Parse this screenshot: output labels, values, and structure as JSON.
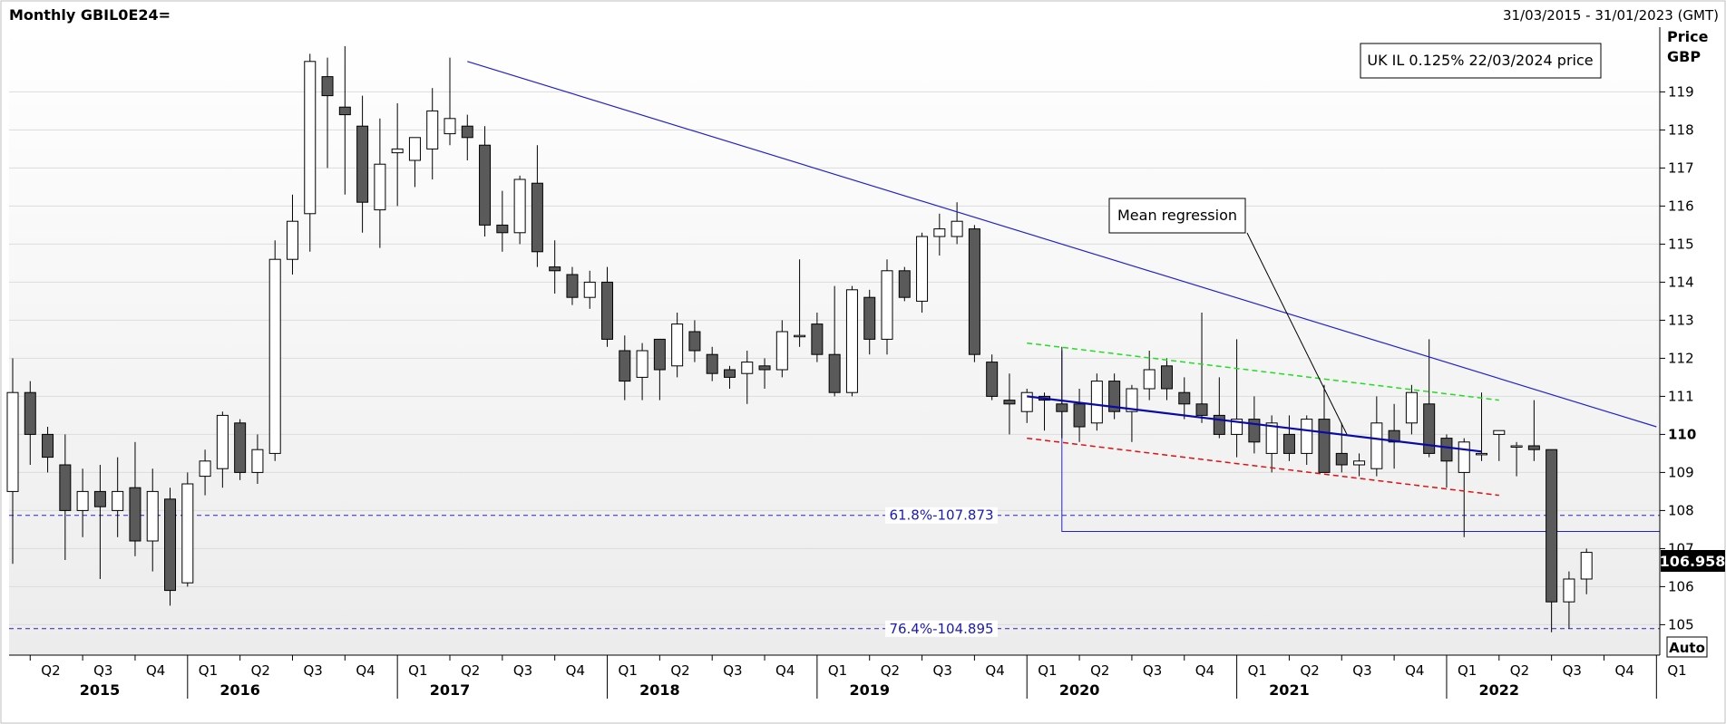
{
  "title": "Monthly GBIL0E24=",
  "date_range": "31/03/2015 - 31/01/2023 (GMT)",
  "y_axis": {
    "label_line1": "Price",
    "label_line2": "GBP",
    "auto_label": "Auto"
  },
  "legend": {
    "text": "UK IL 0.125% 22/03/2024 price"
  },
  "annotation": {
    "text": "Mean regression"
  },
  "colors": {
    "up_fill": "#ffffff",
    "down_fill": "#5a5a5a",
    "trend": "#2222cc",
    "regression": "#0a0aa8",
    "upper_channel": "#22dd22",
    "lower_channel": "#dd1111",
    "fib": "#2222cc",
    "last_price_box": "#000000"
  },
  "chart_data": {
    "type": "candlestick",
    "title": "Monthly GBIL0E24=",
    "ylim": [
      104.2,
      120.7
    ],
    "yticks": [
      105,
      106,
      107,
      108,
      109,
      110,
      111,
      112,
      113,
      114,
      115,
      116,
      117,
      118,
      119
    ],
    "last_price": "106.958",
    "quarters": [
      "Q2",
      "Q3",
      "Q4",
      "Q1",
      "Q2",
      "Q3",
      "Q4",
      "Q1",
      "Q2",
      "Q3",
      "Q4",
      "Q1",
      "Q2",
      "Q3",
      "Q4",
      "Q1",
      "Q2",
      "Q3",
      "Q4",
      "Q1",
      "Q2",
      "Q3",
      "Q4",
      "Q1",
      "Q2",
      "Q3",
      "Q4",
      "Q1",
      "Q2",
      "Q3",
      "Q4",
      "Q1"
    ],
    "years": [
      "2015",
      "2016",
      "2017",
      "2018",
      "2019",
      "2020",
      "2021",
      "2022"
    ],
    "fib_levels": [
      {
        "label": "61.8%-107.873",
        "value": 107.873
      },
      {
        "label": "76.4%-104.895",
        "value": 104.895
      }
    ],
    "trend_lines": [
      {
        "name": "",
        "from": [
          "2017-05",
          119.8
        ],
        "to": [
          "2023-01",
          110.2
        ]
      }
    ],
    "regression": {
      "from": [
        "2020-01",
        111.0
      ],
      "to": [
        "2022-03",
        109.55
      ]
    },
    "channel_upper": {
      "from": [
        "2020-01",
        112.4
      ],
      "to": [
        "2022-04",
        110.9
      ]
    },
    "channel_lower": {
      "from": [
        "2020-01",
        109.9
      ],
      "to": [
        "2022-04",
        108.4
      ]
    },
    "support_line": {
      "from": [
        "2020-03",
        107.45
      ],
      "to": [
        "2023-01",
        107.45
      ],
      "drop_from": 112.2
    },
    "candles": [
      {
        "d": "2015-03",
        "o": 108.5,
        "h": 112.0,
        "l": 106.6,
        "c": 111.1
      },
      {
        "d": "2015-04",
        "o": 111.1,
        "h": 111.4,
        "l": 109.2,
        "c": 110.0
      },
      {
        "d": "2015-05",
        "o": 110.0,
        "h": 110.2,
        "l": 109.0,
        "c": 109.4
      },
      {
        "d": "2015-06",
        "o": 109.2,
        "h": 110.0,
        "l": 106.7,
        "c": 108.0
      },
      {
        "d": "2015-07",
        "o": 108.0,
        "h": 109.1,
        "l": 107.3,
        "c": 108.5
      },
      {
        "d": "2015-08",
        "o": 108.5,
        "h": 109.2,
        "l": 106.2,
        "c": 108.1
      },
      {
        "d": "2015-09",
        "o": 108.0,
        "h": 109.4,
        "l": 107.3,
        "c": 108.5
      },
      {
        "d": "2015-10",
        "o": 108.6,
        "h": 109.8,
        "l": 106.8,
        "c": 107.2
      },
      {
        "d": "2015-11",
        "o": 107.2,
        "h": 109.1,
        "l": 106.4,
        "c": 108.5
      },
      {
        "d": "2015-12",
        "o": 108.3,
        "h": 108.6,
        "l": 105.5,
        "c": 105.9
      },
      {
        "d": "2016-01",
        "o": 106.1,
        "h": 109.0,
        "l": 106.0,
        "c": 108.7
      },
      {
        "d": "2016-02",
        "o": 108.9,
        "h": 109.6,
        "l": 108.4,
        "c": 109.3
      },
      {
        "d": "2016-03",
        "o": 109.1,
        "h": 110.6,
        "l": 108.6,
        "c": 110.5
      },
      {
        "d": "2016-04",
        "o": 110.3,
        "h": 110.4,
        "l": 108.8,
        "c": 109.0
      },
      {
        "d": "2016-05",
        "o": 109.0,
        "h": 110.0,
        "l": 108.7,
        "c": 109.6
      },
      {
        "d": "2016-06",
        "o": 109.5,
        "h": 115.1,
        "l": 109.3,
        "c": 114.6
      },
      {
        "d": "2016-07",
        "o": 114.6,
        "h": 116.3,
        "l": 114.2,
        "c": 115.6
      },
      {
        "d": "2016-08",
        "o": 115.8,
        "h": 120.0,
        "l": 114.8,
        "c": 119.8
      },
      {
        "d": "2016-09",
        "o": 119.4,
        "h": 119.9,
        "l": 117.0,
        "c": 118.9
      },
      {
        "d": "2016-10",
        "o": 118.6,
        "h": 120.2,
        "l": 116.3,
        "c": 118.4
      },
      {
        "d": "2016-11",
        "o": 118.1,
        "h": 118.9,
        "l": 115.3,
        "c": 116.1
      },
      {
        "d": "2016-12",
        "o": 115.9,
        "h": 118.3,
        "l": 114.9,
        "c": 117.1
      },
      {
        "d": "2017-01",
        "o": 117.4,
        "h": 118.7,
        "l": 116.0,
        "c": 117.5
      },
      {
        "d": "2017-02",
        "o": 117.2,
        "h": 117.8,
        "l": 116.5,
        "c": 117.8
      },
      {
        "d": "2017-03",
        "o": 117.5,
        "h": 119.1,
        "l": 116.7,
        "c": 118.5
      },
      {
        "d": "2017-04",
        "o": 117.9,
        "h": 119.9,
        "l": 117.6,
        "c": 118.3
      },
      {
        "d": "2017-05",
        "o": 118.1,
        "h": 118.4,
        "l": 117.2,
        "c": 117.8
      },
      {
        "d": "2017-06",
        "o": 117.6,
        "h": 118.1,
        "l": 115.2,
        "c": 115.5
      },
      {
        "d": "2017-07",
        "o": 115.5,
        "h": 116.4,
        "l": 114.8,
        "c": 115.3
      },
      {
        "d": "2017-08",
        "o": 115.3,
        "h": 116.8,
        "l": 115.0,
        "c": 116.7
      },
      {
        "d": "2017-09",
        "o": 116.6,
        "h": 117.6,
        "l": 114.4,
        "c": 114.8
      },
      {
        "d": "2017-10",
        "o": 114.4,
        "h": 115.1,
        "l": 113.7,
        "c": 114.3
      },
      {
        "d": "2017-11",
        "o": 114.2,
        "h": 114.4,
        "l": 113.4,
        "c": 113.6
      },
      {
        "d": "2017-12",
        "o": 113.6,
        "h": 114.3,
        "l": 113.3,
        "c": 114.0
      },
      {
        "d": "2018-01",
        "o": 114.0,
        "h": 114.4,
        "l": 112.3,
        "c": 112.5
      },
      {
        "d": "2018-02",
        "o": 112.2,
        "h": 112.6,
        "l": 110.9,
        "c": 111.4
      },
      {
        "d": "2018-03",
        "o": 111.5,
        "h": 112.4,
        "l": 110.9,
        "c": 112.2
      },
      {
        "d": "2018-04",
        "o": 112.5,
        "h": 112.5,
        "l": 110.9,
        "c": 111.7
      },
      {
        "d": "2018-05",
        "o": 111.8,
        "h": 113.2,
        "l": 111.5,
        "c": 112.9
      },
      {
        "d": "2018-06",
        "o": 112.7,
        "h": 113.0,
        "l": 111.9,
        "c": 112.2
      },
      {
        "d": "2018-07",
        "o": 112.1,
        "h": 112.3,
        "l": 111.4,
        "c": 111.6
      },
      {
        "d": "2018-08",
        "o": 111.7,
        "h": 111.8,
        "l": 111.2,
        "c": 111.5
      },
      {
        "d": "2018-09",
        "o": 111.6,
        "h": 112.2,
        "l": 110.8,
        "c": 111.9
      },
      {
        "d": "2018-10",
        "o": 111.8,
        "h": 112.0,
        "l": 111.2,
        "c": 111.7
      },
      {
        "d": "2018-11",
        "o": 111.7,
        "h": 113.0,
        "l": 111.5,
        "c": 112.7
      },
      {
        "d": "2018-12",
        "o": 112.6,
        "h": 114.6,
        "l": 112.3,
        "c": 112.6
      },
      {
        "d": "2019-01",
        "o": 112.9,
        "h": 113.2,
        "l": 111.9,
        "c": 112.1
      },
      {
        "d": "2019-02",
        "o": 112.1,
        "h": 113.9,
        "l": 111.0,
        "c": 111.1
      },
      {
        "d": "2019-03",
        "o": 111.1,
        "h": 113.9,
        "l": 111.0,
        "c": 113.8
      },
      {
        "d": "2019-04",
        "o": 113.6,
        "h": 113.8,
        "l": 112.1,
        "c": 112.5
      },
      {
        "d": "2019-05",
        "o": 112.5,
        "h": 114.6,
        "l": 112.1,
        "c": 114.3
      },
      {
        "d": "2019-06",
        "o": 114.3,
        "h": 114.4,
        "l": 113.5,
        "c": 113.6
      },
      {
        "d": "2019-07",
        "o": 113.5,
        "h": 115.3,
        "l": 113.2,
        "c": 115.2
      },
      {
        "d": "2019-08",
        "o": 115.2,
        "h": 115.8,
        "l": 114.7,
        "c": 115.4
      },
      {
        "d": "2019-09",
        "o": 115.2,
        "h": 116.1,
        "l": 115.0,
        "c": 115.6
      },
      {
        "d": "2019-10",
        "o": 115.4,
        "h": 115.5,
        "l": 111.9,
        "c": 112.1
      },
      {
        "d": "2019-11",
        "o": 111.9,
        "h": 112.1,
        "l": 110.9,
        "c": 111.0
      },
      {
        "d": "2019-12",
        "o": 110.9,
        "h": 111.6,
        "l": 110.0,
        "c": 110.8
      },
      {
        "d": "2020-01",
        "o": 110.6,
        "h": 111.2,
        "l": 110.3,
        "c": 111.1
      },
      {
        "d": "2020-02",
        "o": 111.0,
        "h": 111.1,
        "l": 110.1,
        "c": 110.9
      },
      {
        "d": "2020-03",
        "o": 110.8,
        "h": 112.3,
        "l": 109.9,
        "c": 110.6
      },
      {
        "d": "2020-04",
        "o": 110.8,
        "h": 111.2,
        "l": 109.8,
        "c": 110.2
      },
      {
        "d": "2020-05",
        "o": 110.3,
        "h": 111.6,
        "l": 110.1,
        "c": 111.4
      },
      {
        "d": "2020-06",
        "o": 111.4,
        "h": 111.6,
        "l": 110.4,
        "c": 110.6
      },
      {
        "d": "2020-07",
        "o": 110.6,
        "h": 111.3,
        "l": 109.8,
        "c": 111.2
      },
      {
        "d": "2020-08",
        "o": 111.2,
        "h": 112.2,
        "l": 110.9,
        "c": 111.7
      },
      {
        "d": "2020-09",
        "o": 111.8,
        "h": 112.0,
        "l": 110.9,
        "c": 111.2
      },
      {
        "d": "2020-10",
        "o": 111.1,
        "h": 111.5,
        "l": 110.4,
        "c": 110.8
      },
      {
        "d": "2020-11",
        "o": 110.8,
        "h": 113.2,
        "l": 110.3,
        "c": 110.5
      },
      {
        "d": "2020-12",
        "o": 110.5,
        "h": 111.5,
        "l": 109.9,
        "c": 110.0
      },
      {
        "d": "2021-01",
        "o": 110.0,
        "h": 112.5,
        "l": 109.4,
        "c": 110.4
      },
      {
        "d": "2021-02",
        "o": 110.4,
        "h": 111.0,
        "l": 109.5,
        "c": 109.8
      },
      {
        "d": "2021-03",
        "o": 109.5,
        "h": 110.5,
        "l": 109.0,
        "c": 110.3
      },
      {
        "d": "2021-04",
        "o": 110.0,
        "h": 110.5,
        "l": 109.3,
        "c": 109.5
      },
      {
        "d": "2021-05",
        "o": 109.5,
        "h": 110.5,
        "l": 109.2,
        "c": 110.4
      },
      {
        "d": "2021-06",
        "o": 110.4,
        "h": 111.3,
        "l": 109.0,
        "c": 109.0
      },
      {
        "d": "2021-07",
        "o": 109.5,
        "h": 110.3,
        "l": 109.0,
        "c": 109.2
      },
      {
        "d": "2021-08",
        "o": 109.2,
        "h": 109.5,
        "l": 108.9,
        "c": 109.3
      },
      {
        "d": "2021-09",
        "o": 109.1,
        "h": 111.0,
        "l": 108.9,
        "c": 110.3
      },
      {
        "d": "2021-10",
        "o": 110.1,
        "h": 110.8,
        "l": 109.1,
        "c": 109.8
      },
      {
        "d": "2021-11",
        "o": 110.3,
        "h": 111.3,
        "l": 110.0,
        "c": 111.1
      },
      {
        "d": "2021-12",
        "o": 110.8,
        "h": 112.5,
        "l": 109.4,
        "c": 109.5
      },
      {
        "d": "2022-01",
        "o": 109.9,
        "h": 110.0,
        "l": 108.6,
        "c": 109.3
      },
      {
        "d": "2022-02",
        "o": 109.0,
        "h": 109.9,
        "l": 107.3,
        "c": 109.8
      },
      {
        "d": "2022-03",
        "o": 109.5,
        "h": 111.1,
        "l": 109.3,
        "c": 109.5
      },
      {
        "d": "2022-04",
        "o": 110.0,
        "h": 110.1,
        "l": 109.3,
        "c": 110.1
      },
      {
        "d": "2022-05",
        "o": 109.7,
        "h": 109.8,
        "l": 108.9,
        "c": 109.7
      },
      {
        "d": "2022-06",
        "o": 109.7,
        "h": 110.9,
        "l": 109.3,
        "c": 109.6
      },
      {
        "d": "2022-07",
        "o": 109.6,
        "h": 109.6,
        "l": 104.8,
        "c": 105.6
      },
      {
        "d": "2022-08",
        "o": 105.6,
        "h": 106.4,
        "l": 104.9,
        "c": 106.2
      },
      {
        "d": "2022-09",
        "o": 106.2,
        "h": 107.0,
        "l": 105.8,
        "c": 106.9
      }
    ]
  }
}
